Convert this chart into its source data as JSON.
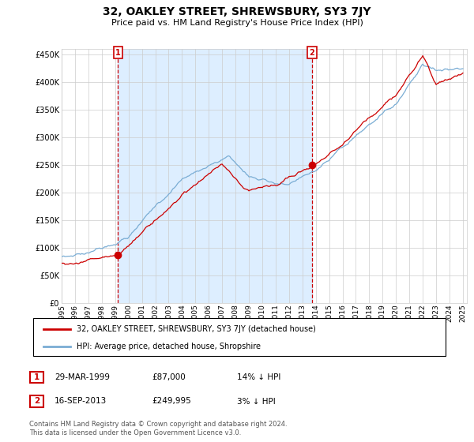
{
  "title": "32, OAKLEY STREET, SHREWSBURY, SY3 7JY",
  "subtitle": "Price paid vs. HM Land Registry's House Price Index (HPI)",
  "legend_line1": "32, OAKLEY STREET, SHREWSBURY, SY3 7JY (detached house)",
  "legend_line2": "HPI: Average price, detached house, Shropshire",
  "transaction1_label": "1",
  "transaction1_date": "29-MAR-1999",
  "transaction1_price": "£87,000",
  "transaction1_hpi": "14% ↓ HPI",
  "transaction2_label": "2",
  "transaction2_date": "16-SEP-2013",
  "transaction2_price": "£249,995",
  "transaction2_hpi": "3% ↓ HPI",
  "footer": "Contains HM Land Registry data © Crown copyright and database right 2024.\nThis data is licensed under the Open Government Licence v3.0.",
  "red_color": "#cc0000",
  "blue_color": "#7aadd4",
  "shade_color": "#ddeeff",
  "grid_color": "#cccccc",
  "background_color": "#ffffff",
  "ylim": [
    0,
    460000
  ],
  "yticks": [
    0,
    50000,
    100000,
    150000,
    200000,
    250000,
    300000,
    350000,
    400000,
    450000
  ],
  "marker1_x": 1999.22,
  "marker1_y": 87000,
  "marker2_x": 2013.72,
  "marker2_y": 249995,
  "xmin": 1995,
  "xmax": 2025.3
}
